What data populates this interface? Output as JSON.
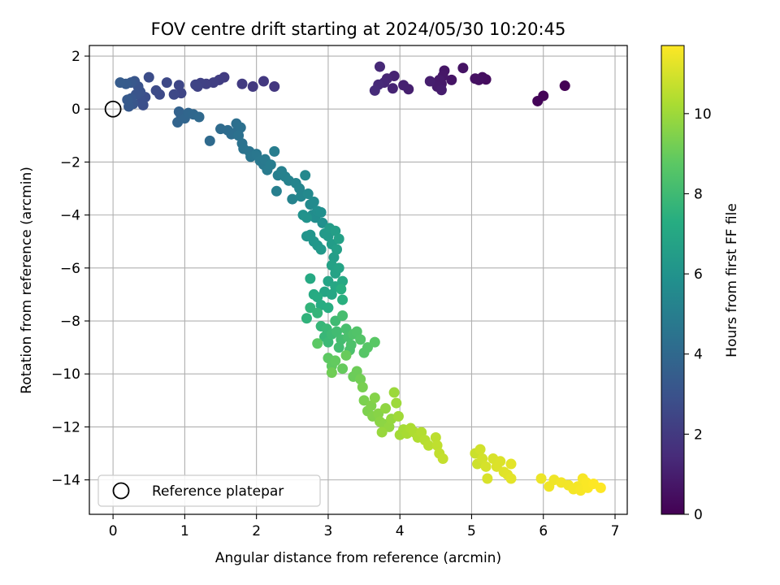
{
  "chart_data": {
    "type": "scatter",
    "title": "FOV centre drift starting at 2024/05/30 10:20:45",
    "xlabel": "Angular distance from reference (arcmin)",
    "ylabel": "Rotation from reference (arcmin)",
    "xlim": [
      -0.33,
      7.17
    ],
    "ylim": [
      -15.3,
      2.4
    ],
    "xticks": [
      0,
      1,
      2,
      3,
      4,
      5,
      6,
      7
    ],
    "yticks": [
      -14,
      -12,
      -10,
      -8,
      -6,
      -4,
      -2,
      0,
      2
    ],
    "grid": true,
    "colormap": "viridis",
    "colorbar": {
      "label": "Hours from first FF file",
      "range": [
        0,
        11.7
      ],
      "ticks": [
        0,
        2,
        4,
        6,
        8,
        10
      ]
    },
    "legend": {
      "position": "lower-left",
      "entries": [
        {
          "label": "Reference platepar",
          "marker": "open-circle"
        }
      ]
    },
    "reference_point": {
      "x": 0,
      "y": 0
    },
    "series": [
      {
        "points": [
          [
            6.3,
            0.88,
            0.05
          ],
          [
            6.0,
            0.5,
            0.1
          ],
          [
            5.92,
            0.3,
            0.15
          ],
          [
            5.2,
            1.12,
            0.4
          ],
          [
            5.15,
            1.2,
            0.45
          ],
          [
            5.1,
            1.1,
            0.5
          ],
          [
            5.05,
            1.15,
            0.55
          ],
          [
            4.88,
            1.55,
            0.6
          ],
          [
            4.72,
            1.1,
            0.65
          ],
          [
            4.62,
            1.45,
            0.7
          ],
          [
            4.6,
            1.25,
            0.75
          ],
          [
            4.58,
            0.95,
            0.8
          ],
          [
            4.55,
            1.1,
            0.85
          ],
          [
            4.52,
            0.85,
            0.9
          ],
          [
            4.58,
            0.72,
            0.95
          ],
          [
            4.42,
            1.05,
            1.0
          ],
          [
            4.12,
            0.75,
            1.05
          ],
          [
            4.05,
            0.9,
            1.1
          ],
          [
            3.92,
            1.25,
            1.15
          ],
          [
            3.9,
            0.78,
            1.2
          ],
          [
            3.82,
            1.15,
            1.25
          ],
          [
            3.78,
            1.0,
            1.3
          ],
          [
            3.72,
            1.6,
            1.35
          ],
          [
            3.7,
            0.92,
            1.4
          ],
          [
            3.65,
            0.7,
            1.45
          ],
          [
            2.25,
            0.85,
            1.9
          ],
          [
            2.1,
            1.05,
            1.95
          ],
          [
            1.95,
            0.85,
            2.0
          ],
          [
            1.8,
            0.95,
            2.05
          ],
          [
            1.55,
            1.2,
            2.1
          ],
          [
            1.48,
            1.1,
            2.15
          ],
          [
            1.4,
            1.0,
            2.2
          ],
          [
            1.3,
            0.95,
            2.25
          ],
          [
            1.22,
            0.98,
            2.3
          ],
          [
            1.18,
            0.85,
            2.35
          ],
          [
            1.15,
            0.92,
            2.4
          ],
          [
            0.95,
            0.6,
            2.45
          ],
          [
            0.92,
            0.9,
            2.5
          ],
          [
            0.85,
            0.55,
            2.55
          ],
          [
            0.75,
            1.0,
            2.6
          ],
          [
            0.65,
            0.55,
            2.65
          ],
          [
            0.6,
            0.7,
            2.7
          ],
          [
            0.5,
            1.2,
            2.75
          ],
          [
            0.45,
            0.45,
            2.8
          ],
          [
            0.42,
            0.15,
            2.85
          ],
          [
            0.4,
            0.3,
            2.9
          ],
          [
            0.38,
            0.65,
            2.95
          ],
          [
            0.35,
            0.85,
            3.0
          ],
          [
            0.32,
            0.55,
            3.05
          ],
          [
            0.3,
            1.05,
            3.1
          ],
          [
            0.28,
            0.2,
            3.15
          ],
          [
            0.25,
            0.4,
            3.2
          ],
          [
            0.25,
            1.0,
            3.25
          ],
          [
            0.22,
            0.1,
            3.3
          ],
          [
            0.2,
            0.35,
            3.35
          ],
          [
            0.18,
            0.95,
            3.4
          ],
          [
            0.1,
            1.0,
            3.45
          ],
          [
            0.92,
            -0.1,
            3.7
          ],
          [
            0.95,
            -0.25,
            3.75
          ],
          [
            0.9,
            -0.5,
            3.8
          ],
          [
            1.0,
            -0.35,
            3.85
          ],
          [
            1.05,
            -0.15,
            3.9
          ],
          [
            1.12,
            -0.2,
            3.95
          ],
          [
            1.2,
            -0.3,
            4.0
          ],
          [
            1.35,
            -1.2,
            4.05
          ],
          [
            1.5,
            -0.75,
            4.1
          ],
          [
            1.6,
            -0.8,
            4.15
          ],
          [
            1.65,
            -0.95,
            4.2
          ],
          [
            1.7,
            -0.9,
            4.25
          ],
          [
            1.72,
            -0.55,
            4.3
          ],
          [
            1.78,
            -0.7,
            4.35
          ],
          [
            1.75,
            -1.0,
            4.4
          ],
          [
            1.8,
            -1.3,
            4.45
          ],
          [
            1.82,
            -1.5,
            4.5
          ],
          [
            1.9,
            -1.6,
            4.55
          ],
          [
            1.92,
            -1.8,
            4.6
          ],
          [
            2.0,
            -1.7,
            4.65
          ],
          [
            2.05,
            -1.95,
            4.7
          ],
          [
            2.1,
            -2.1,
            4.75
          ],
          [
            2.12,
            -1.9,
            4.8
          ],
          [
            2.15,
            -2.3,
            4.85
          ],
          [
            2.2,
            -2.1,
            4.9
          ],
          [
            2.25,
            -1.6,
            4.95
          ],
          [
            2.3,
            -2.5,
            5.0
          ],
          [
            2.28,
            -3.1,
            5.05
          ],
          [
            2.35,
            -2.35,
            5.1
          ],
          [
            2.4,
            -2.55,
            5.15
          ],
          [
            2.45,
            -2.7,
            5.2
          ],
          [
            2.5,
            -3.4,
            5.25
          ],
          [
            2.55,
            -2.8,
            5.3
          ],
          [
            2.6,
            -3.0,
            5.35
          ],
          [
            2.62,
            -3.3,
            5.4
          ],
          [
            2.68,
            -2.5,
            5.45
          ],
          [
            2.72,
            -3.2,
            5.5
          ],
          [
            2.75,
            -3.6,
            5.55
          ],
          [
            2.8,
            -3.5,
            5.6
          ],
          [
            2.78,
            -4.0,
            5.65
          ],
          [
            2.82,
            -4.1,
            5.7
          ],
          [
            2.85,
            -3.85,
            5.75
          ],
          [
            2.9,
            -3.9,
            5.8
          ],
          [
            2.92,
            -4.3,
            5.85
          ],
          [
            2.65,
            -4.0,
            5.95
          ],
          [
            2.7,
            -4.1,
            6.0
          ],
          [
            2.7,
            -4.8,
            6.05
          ],
          [
            2.75,
            -4.75,
            6.1
          ],
          [
            2.8,
            -5.0,
            6.15
          ],
          [
            2.85,
            -5.15,
            6.2
          ],
          [
            2.9,
            -5.3,
            6.25
          ],
          [
            2.95,
            -4.7,
            6.3
          ],
          [
            3.0,
            -4.8,
            6.35
          ],
          [
            3.02,
            -4.5,
            6.4
          ],
          [
            3.05,
            -5.1,
            6.45
          ],
          [
            3.08,
            -5.6,
            6.5
          ],
          [
            3.1,
            -4.6,
            6.55
          ],
          [
            3.12,
            -5.3,
            6.6
          ],
          [
            3.15,
            -4.9,
            6.65
          ],
          [
            3.05,
            -5.9,
            6.7
          ],
          [
            3.1,
            -6.2,
            6.75
          ],
          [
            3.15,
            -6.0,
            6.8
          ],
          [
            3.0,
            -6.5,
            6.85
          ],
          [
            2.95,
            -6.9,
            6.9
          ],
          [
            3.05,
            -7.0,
            6.95
          ],
          [
            3.1,
            -6.7,
            7.0
          ],
          [
            3.2,
            -6.5,
            7.05
          ],
          [
            2.75,
            -6.4,
            7.1
          ],
          [
            2.8,
            -7.0,
            7.15
          ],
          [
            2.85,
            -7.1,
            7.2
          ],
          [
            2.9,
            -7.4,
            7.25
          ],
          [
            3.0,
            -7.5,
            7.3
          ],
          [
            3.18,
            -6.8,
            7.35
          ],
          [
            3.2,
            -7.2,
            7.4
          ],
          [
            2.7,
            -7.9,
            7.6
          ],
          [
            2.75,
            -7.5,
            7.65
          ],
          [
            2.85,
            -7.7,
            7.7
          ],
          [
            2.9,
            -8.2,
            7.75
          ],
          [
            2.95,
            -8.6,
            7.8
          ],
          [
            2.98,
            -8.3,
            7.85
          ],
          [
            3.0,
            -8.8,
            7.9
          ],
          [
            3.05,
            -8.5,
            7.95
          ],
          [
            3.1,
            -8.0,
            8.0
          ],
          [
            3.12,
            -8.4,
            8.05
          ],
          [
            3.15,
            -9.0,
            8.1
          ],
          [
            3.18,
            -8.7,
            8.15
          ],
          [
            3.2,
            -7.8,
            8.2
          ],
          [
            3.25,
            -8.3,
            8.25
          ],
          [
            3.28,
            -8.6,
            8.3
          ],
          [
            3.3,
            -9.1,
            8.35
          ],
          [
            3.32,
            -8.9,
            8.4
          ],
          [
            3.35,
            -8.5,
            8.45
          ],
          [
            3.4,
            -8.4,
            8.5
          ],
          [
            3.45,
            -8.7,
            8.55
          ],
          [
            3.5,
            -9.2,
            8.6
          ],
          [
            3.55,
            -9.0,
            8.65
          ],
          [
            3.65,
            -8.8,
            8.7
          ],
          [
            2.85,
            -8.85,
            8.75
          ],
          [
            3.0,
            -9.4,
            8.8
          ],
          [
            3.05,
            -9.7,
            8.85
          ],
          [
            3.1,
            -9.5,
            8.9
          ],
          [
            3.2,
            -9.8,
            8.95
          ],
          [
            3.25,
            -9.3,
            9.0
          ],
          [
            3.35,
            -10.1,
            9.05
          ],
          [
            3.4,
            -9.9,
            9.1
          ],
          [
            3.05,
            -9.95,
            9.15
          ],
          [
            3.45,
            -10.2,
            9.2
          ],
          [
            3.48,
            -10.5,
            9.3
          ],
          [
            3.5,
            -11.0,
            9.35
          ],
          [
            3.55,
            -11.4,
            9.4
          ],
          [
            3.6,
            -11.2,
            9.45
          ],
          [
            3.62,
            -11.6,
            9.5
          ],
          [
            3.65,
            -10.9,
            9.55
          ],
          [
            3.7,
            -11.5,
            9.6
          ],
          [
            3.72,
            -11.8,
            9.65
          ],
          [
            3.78,
            -11.9,
            9.7
          ],
          [
            3.8,
            -11.3,
            9.75
          ],
          [
            3.85,
            -12.0,
            9.8
          ],
          [
            3.88,
            -11.7,
            9.85
          ],
          [
            3.75,
            -12.2,
            9.9
          ],
          [
            3.92,
            -10.7,
            9.95
          ],
          [
            3.95,
            -11.1,
            10.0
          ],
          [
            3.98,
            -11.6,
            10.05
          ],
          [
            4.0,
            -12.3,
            10.1
          ],
          [
            4.05,
            -12.1,
            10.15
          ],
          [
            4.1,
            -12.25,
            10.2
          ],
          [
            4.15,
            -12.05,
            10.25
          ],
          [
            4.2,
            -12.2,
            10.3
          ],
          [
            4.25,
            -12.4,
            10.35
          ],
          [
            4.3,
            -12.2,
            10.4
          ],
          [
            4.35,
            -12.5,
            10.45
          ],
          [
            4.4,
            -12.7,
            10.5
          ],
          [
            4.5,
            -12.4,
            10.55
          ],
          [
            4.52,
            -12.7,
            10.6
          ],
          [
            4.55,
            -13.0,
            10.65
          ],
          [
            4.6,
            -13.2,
            10.7
          ],
          [
            5.05,
            -13.0,
            10.8
          ],
          [
            5.08,
            -13.4,
            10.85
          ],
          [
            5.12,
            -12.85,
            10.9
          ],
          [
            5.15,
            -13.2,
            10.95
          ],
          [
            5.2,
            -13.5,
            11.0
          ],
          [
            5.22,
            -13.95,
            11.05
          ],
          [
            5.3,
            -13.2,
            11.05
          ],
          [
            5.35,
            -13.5,
            11.1
          ],
          [
            5.4,
            -13.3,
            11.1
          ],
          [
            5.45,
            -13.7,
            11.15
          ],
          [
            5.5,
            -13.8,
            11.2
          ],
          [
            5.55,
            -13.4,
            11.25
          ],
          [
            5.55,
            -13.95,
            11.25
          ],
          [
            5.97,
            -13.95,
            11.4
          ],
          [
            6.08,
            -14.25,
            11.45
          ],
          [
            6.15,
            -14.0,
            11.45
          ],
          [
            6.25,
            -14.1,
            11.5
          ],
          [
            6.35,
            -14.2,
            11.5
          ],
          [
            6.42,
            -14.35,
            11.55
          ],
          [
            6.48,
            -14.25,
            11.55
          ],
          [
            6.52,
            -14.4,
            11.6
          ],
          [
            6.55,
            -13.95,
            11.6
          ],
          [
            6.6,
            -14.1,
            11.65
          ],
          [
            6.62,
            -14.3,
            11.65
          ],
          [
            6.7,
            -14.15,
            11.7
          ],
          [
            6.8,
            -14.3,
            11.7
          ]
        ]
      }
    ]
  }
}
